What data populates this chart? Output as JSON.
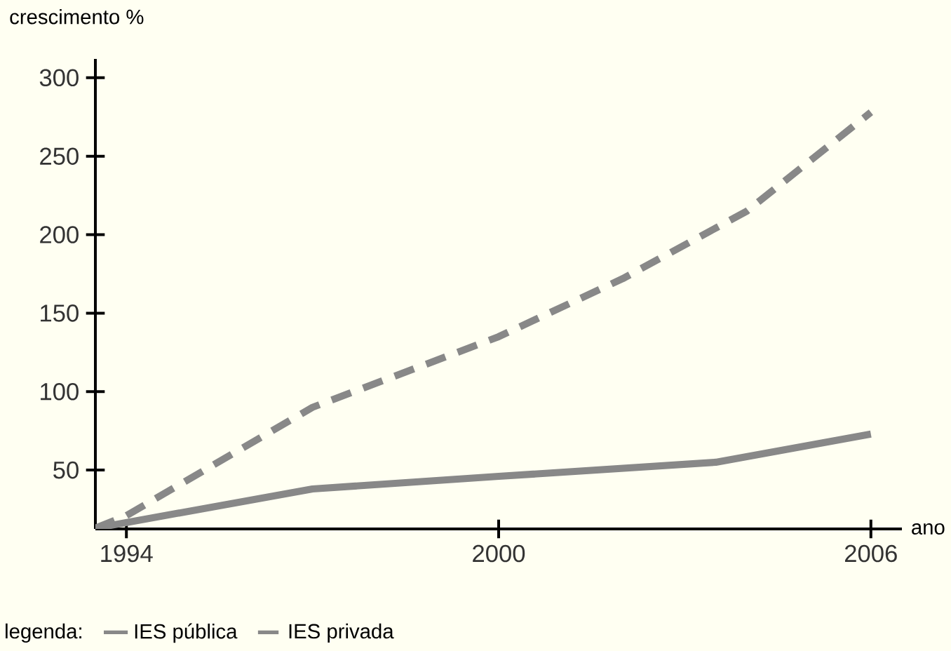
{
  "chart_data": {
    "type": "line",
    "ylabel": "crescimento %",
    "xlabel": "ano",
    "legend_title": "legenda:",
    "legend": "bottom",
    "xlim": [
      1993.5,
      2006.5
    ],
    "ylim": [
      12.5,
      312
    ],
    "xticks": [
      1994,
      2000,
      2006
    ],
    "yticks": [
      50,
      100,
      150,
      200,
      250,
      300
    ],
    "series": [
      {
        "name": "IES pública",
        "color": "#888888",
        "line_style": "solid",
        "x": [
          1993.5,
          1997,
          2000,
          2003.5,
          2006
        ],
        "values": [
          13,
          38,
          46,
          55,
          73
        ]
      },
      {
        "name": "IES privada",
        "color": "#888888",
        "line_style": "dashed",
        "x": [
          1993.5,
          1994,
          1997,
          2000,
          2002,
          2004,
          2006
        ],
        "values": [
          13,
          21,
          90,
          135,
          172,
          215,
          278
        ]
      }
    ]
  }
}
